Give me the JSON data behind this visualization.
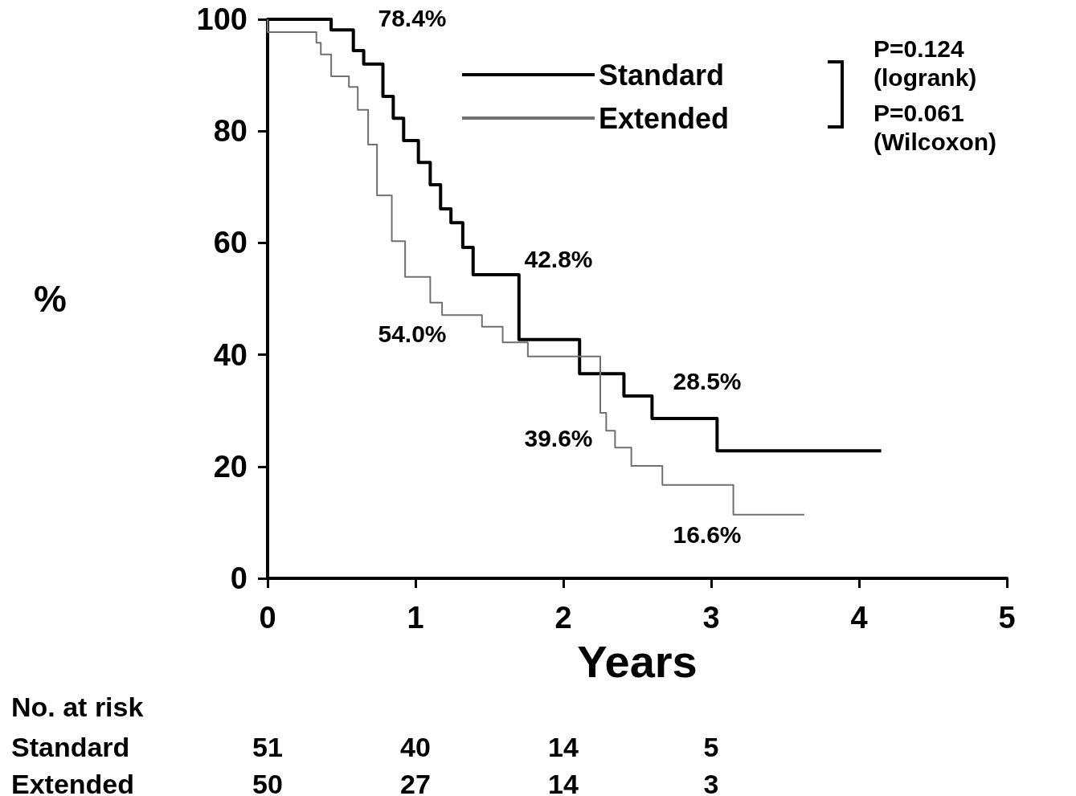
{
  "chart_data": {
    "type": "step",
    "xlabel": "Years",
    "ylabel": "%",
    "xlim": [
      0,
      5
    ],
    "xticks": [
      0,
      1,
      2,
      3,
      4,
      5
    ],
    "ylim": [
      0,
      100
    ],
    "yticks": [
      0,
      20,
      40,
      60,
      80,
      100
    ],
    "grid": false,
    "legend": "top",
    "marker": "none",
    "series": [
      {
        "name": "Standard",
        "color": "#000000",
        "x": [
          0,
          0.43,
          0.58,
          0.65,
          0.78,
          0.85,
          0.92,
          1.02,
          1.1,
          1.17,
          1.24,
          1.32,
          1.39,
          1.7,
          2.11,
          2.41,
          2.6,
          3.04,
          4.15
        ],
        "values": [
          100,
          98.1,
          94.4,
          92,
          86.2,
          82.3,
          78.3,
          74.4,
          70.4,
          66.1,
          63.6,
          59.2,
          54.3,
          42.7,
          36.6,
          32.6,
          28.6,
          22.8,
          22.8
        ]
      },
      {
        "name": "Extended",
        "color": "#707070",
        "x": [
          0,
          0,
          0.33,
          0.36,
          0.43,
          0.55,
          0.61,
          0.68,
          0.74,
          0.84,
          0.93,
          1.1,
          1.18,
          1.45,
          1.59,
          1.76,
          2.25,
          2.29,
          2.35,
          2.46,
          2.67,
          3.15,
          3.63
        ],
        "values": [
          100,
          97.7,
          95.8,
          93.7,
          89.8,
          87.9,
          83.8,
          77.6,
          68.5,
          60.3,
          53.9,
          49.3,
          47.1,
          45,
          42.2,
          39.7,
          29.6,
          26.4,
          23.4,
          20.1,
          16.7,
          11.4,
          11.4
        ]
      }
    ],
    "annotations": [
      {
        "text": "42.8%",
        "x": 2,
        "y": 42.8
      },
      {
        "text": "54.0%",
        "x": 1,
        "y": 54
      },
      {
        "text": "28.5%",
        "x": 3,
        "y": 28.5
      },
      {
        "text": "39.6%",
        "x": 2,
        "y": 39.6
      },
      {
        "text": "16.6%",
        "x": 3,
        "y": 16.6
      },
      "78.4%",
      "P=0.124\n(logrank)",
      "P=0.061\n(Wilcoxon)",
      "No. at risk",
      "Standard",
      "51",
      "40",
      "14",
      "5",
      "Extended",
      "50",
      "27",
      "14",
      "3"
    ]
  }
}
